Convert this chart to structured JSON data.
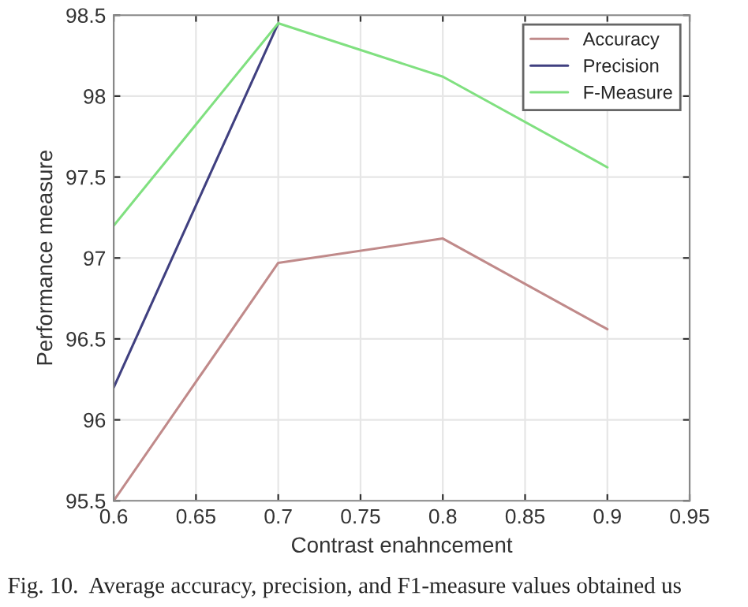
{
  "chart_data": {
    "type": "line",
    "xlabel": "Contrast enahncement",
    "ylabel": "Performance measure",
    "x": [
      0.6,
      0.7,
      0.8,
      0.9
    ],
    "series": [
      {
        "name": "Accuracy",
        "color": "#c08a8a",
        "values": [
          95.5,
          96.97,
          97.12,
          96.56
        ]
      },
      {
        "name": "Precision",
        "color": "#404080",
        "values": [
          96.2,
          98.45,
          null,
          null
        ]
      },
      {
        "name": "F-Measure",
        "color": "#80e080",
        "values": [
          97.2,
          98.45,
          98.12,
          97.56
        ]
      }
    ],
    "xlim": [
      0.6,
      0.95
    ],
    "xticks": [
      {
        "value": 0.6,
        "label": "0.6"
      },
      0.65,
      0.7,
      0.75,
      0.8,
      0.85,
      0.9,
      0.95
    ],
    "ylim": [
      95.5,
      98.5
    ],
    "yticks": [
      95.5,
      96,
      96.5,
      97,
      97.5,
      98,
      98.5
    ],
    "grid": true,
    "legend": "top right",
    "marker": "none",
    "line_style": "solid",
    "annotations": [
      "Fig. 10.  Average accuracy, precision, and F1-measure values obtained us"
    ]
  }
}
